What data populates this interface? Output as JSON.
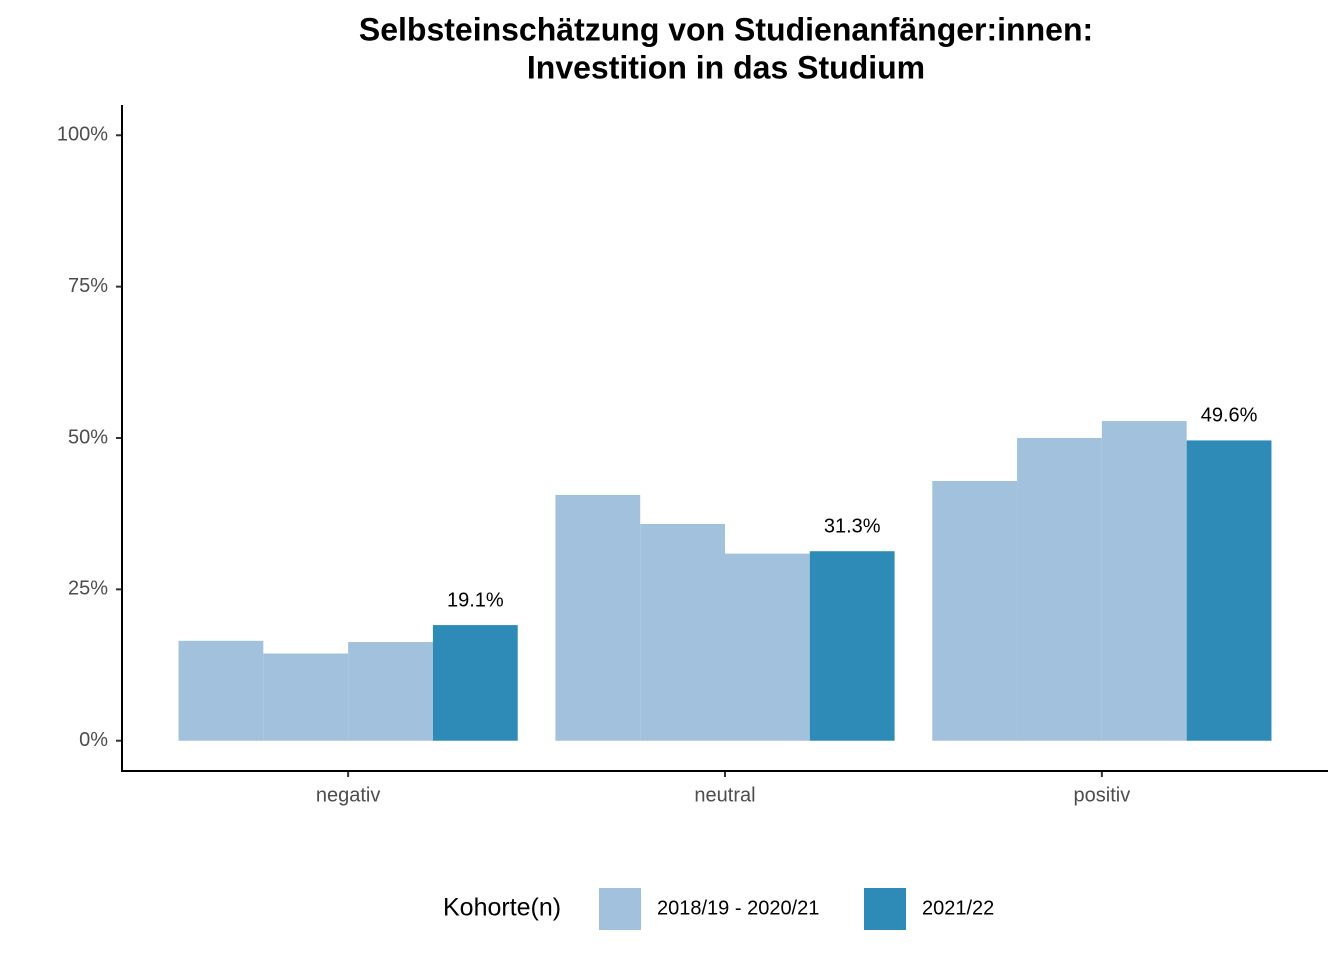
{
  "chart_data": {
    "type": "bar",
    "title": [
      "Selbsteinschätzung von Studienanfänger:innen:",
      "Investition in das Studium"
    ],
    "categories": [
      "negativ",
      "neutral",
      "positiv"
    ],
    "series": [
      {
        "name": "2018/19 - 2020/21",
        "color": "#a1c1dc",
        "values": [
          [
            16.5,
            14.4,
            16.3
          ],
          [
            40.6,
            35.8,
            30.9
          ],
          [
            42.9,
            50.0,
            52.8
          ]
        ]
      },
      {
        "name": "2021/22",
        "color": "#2e8ab7",
        "values": [
          19.1,
          31.3,
          49.6
        ],
        "value_labels": [
          "19.1%",
          "31.3%",
          "49.6%"
        ]
      }
    ],
    "ylim": [
      -5,
      105
    ],
    "yticks": [
      {
        "value": 0,
        "label": "0%"
      },
      {
        "value": 25,
        "label": "25%"
      },
      {
        "value": 50,
        "label": "50%"
      },
      {
        "value": 75,
        "label": "75%"
      },
      {
        "value": 100,
        "label": "100%"
      }
    ],
    "legend_title": "Kohorte(n)",
    "legend_position": "bottom",
    "grid": false
  }
}
